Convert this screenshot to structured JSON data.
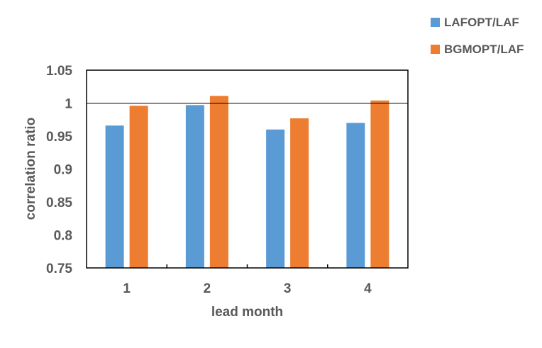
{
  "chart_data": {
    "type": "bar",
    "categories": [
      "1",
      "2",
      "3",
      "4"
    ],
    "series": [
      {
        "name": "LAFOPT/LAF",
        "values": [
          0.966,
          0.997,
          0.96,
          0.97
        ],
        "color": "#5b9bd5"
      },
      {
        "name": "BGMOPT/LAF",
        "values": [
          0.996,
          1.011,
          0.977,
          1.004
        ],
        "color": "#ed7d31"
      }
    ],
    "xlabel": "lead month",
    "ylabel": "correlation ratio",
    "ylim": [
      0.75,
      1.05
    ],
    "yticks": [
      "0.75",
      "0.8",
      "0.85",
      "0.9",
      "0.95",
      "1",
      "1.05"
    ],
    "reference_line": 1,
    "grid": false,
    "legend_position": "top-right"
  }
}
